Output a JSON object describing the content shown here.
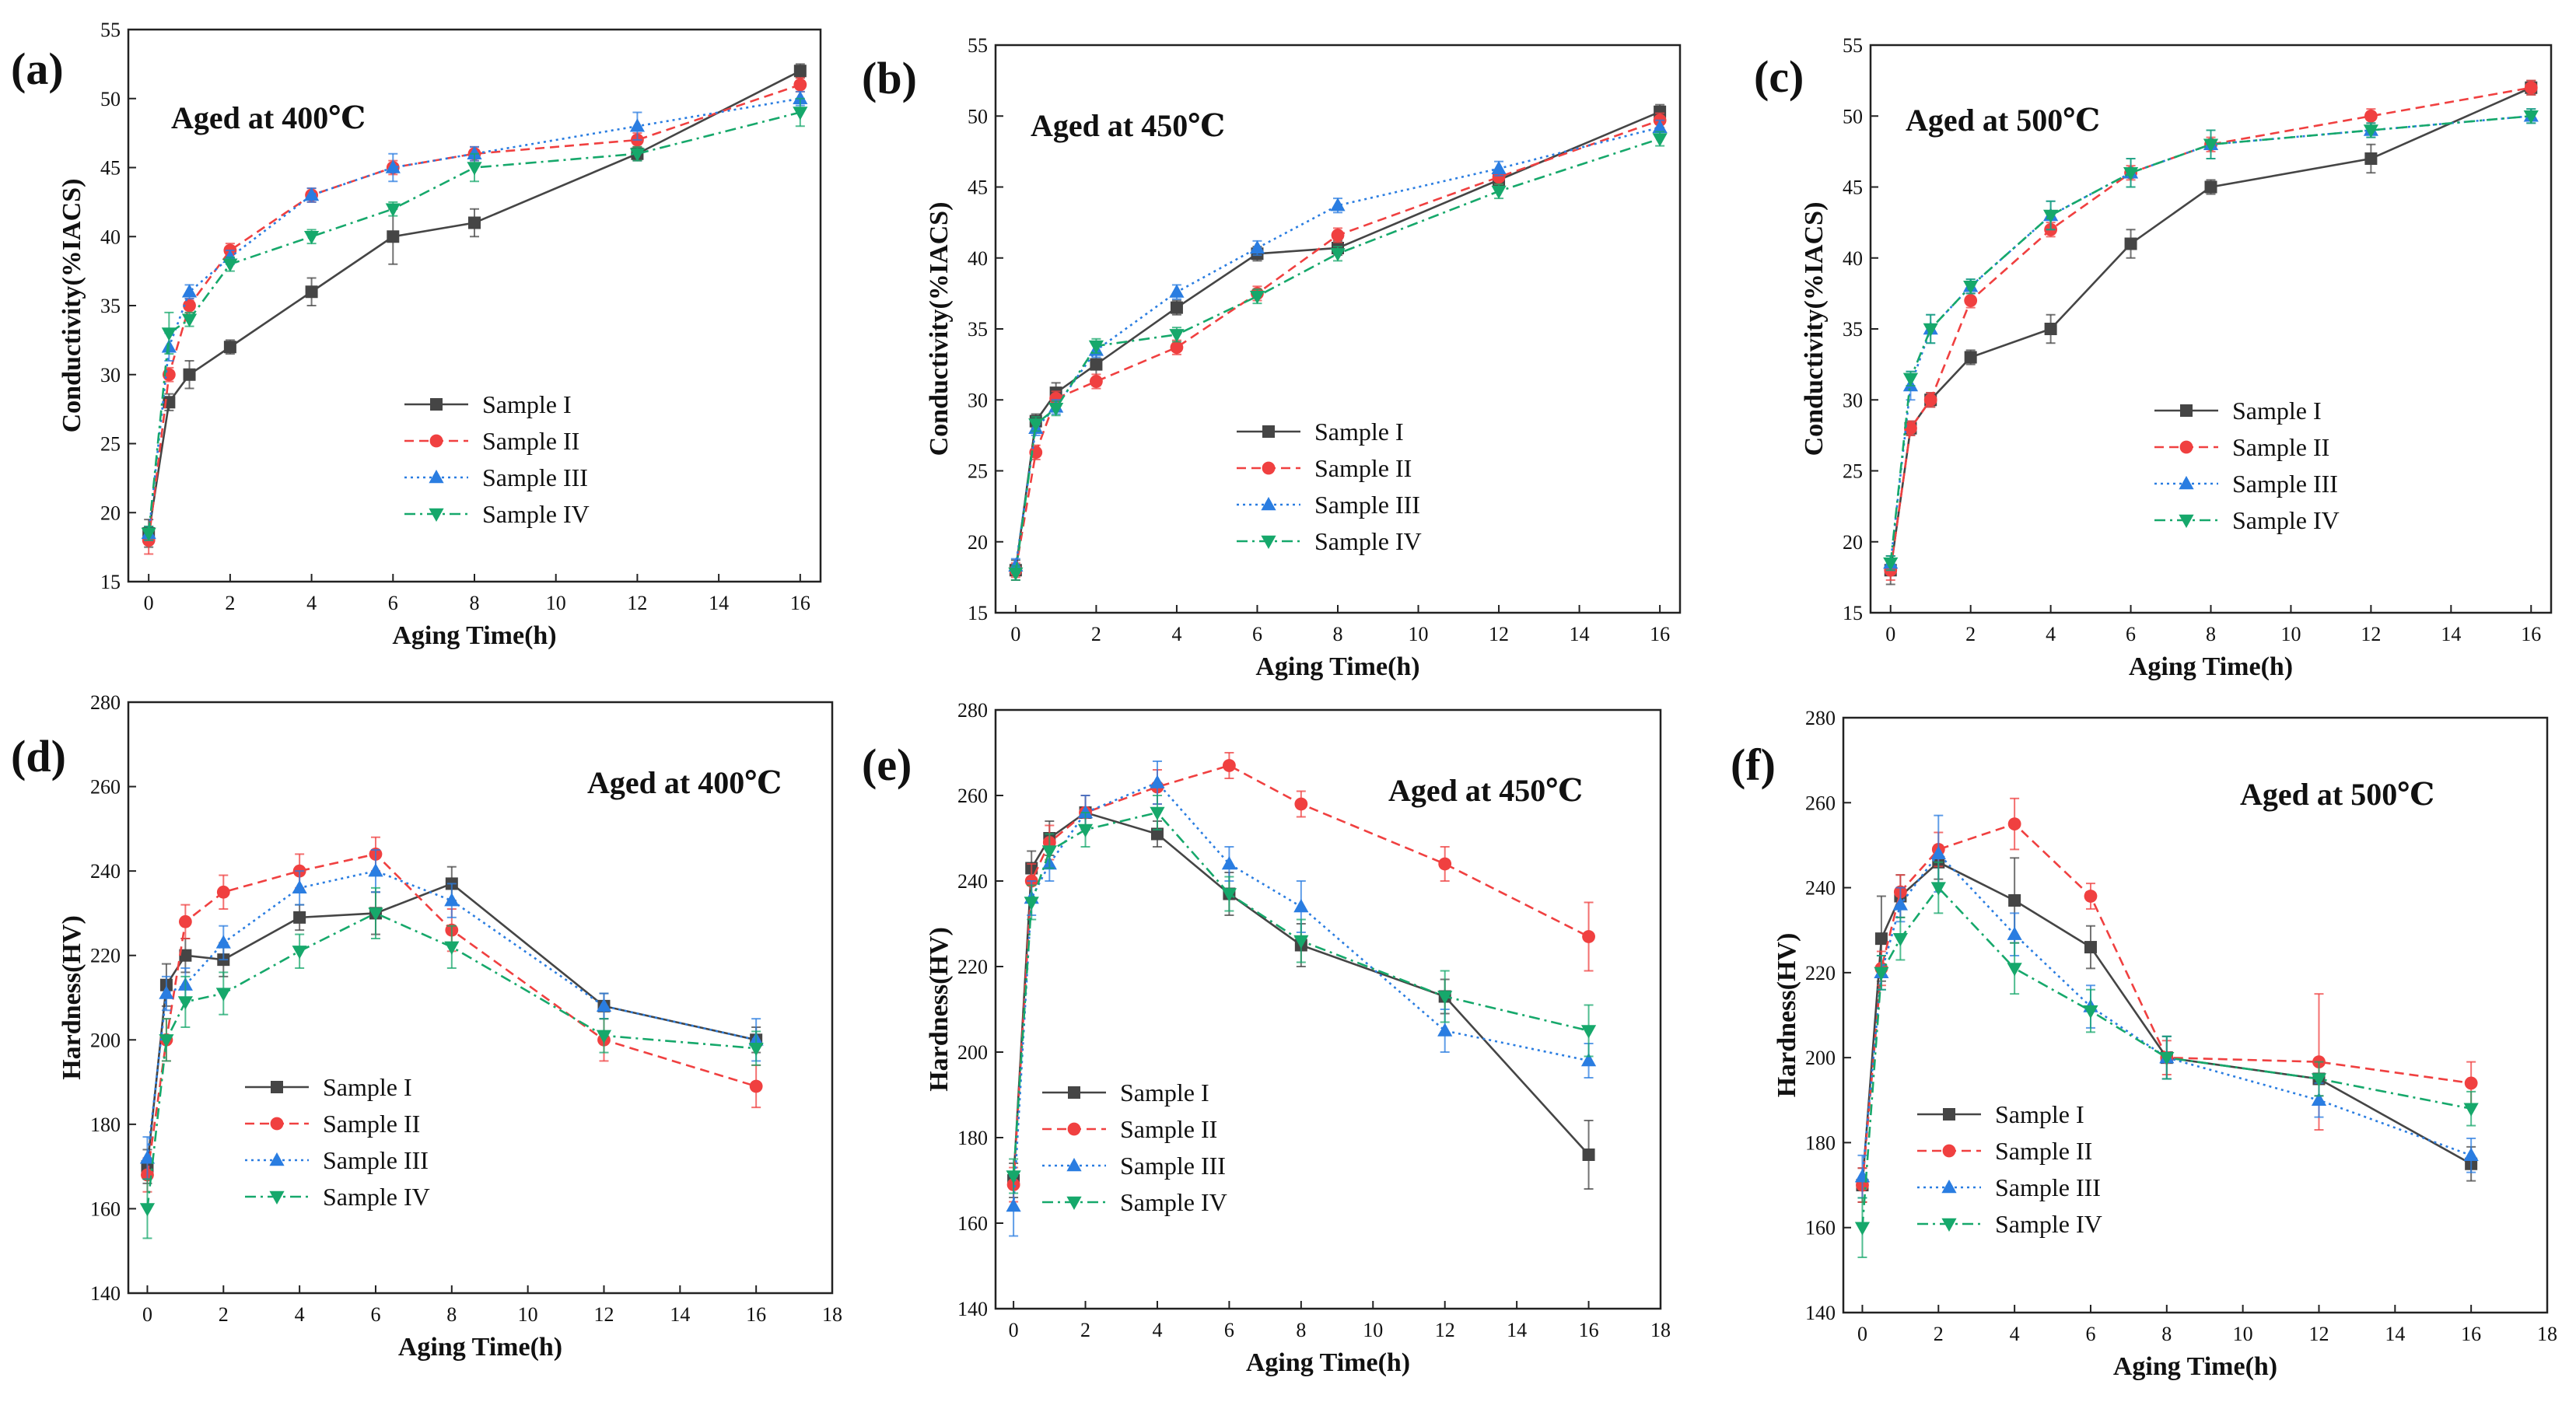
{
  "figure": {
    "series_names": [
      "Sample I",
      "Sample II",
      "Sample III",
      "Sample IV"
    ],
    "series_colors": [
      "#454545",
      "#f04040",
      "#2a7de1",
      "#16a86b"
    ],
    "series_markers": [
      "square",
      "circle",
      "triangle-up",
      "triangle-down"
    ],
    "series_dashes": [
      "solid",
      "dashed",
      "dotted",
      "dashdot"
    ]
  },
  "chart_data": [
    {
      "id": "a",
      "type": "line",
      "panel_label": "(a)",
      "annotation": "Aged at 400℃",
      "xlabel": "Aging Time(h)",
      "ylabel": "Conductivity(%IACS)",
      "xlim": [
        -0.5,
        16.5
      ],
      "ylim": [
        15,
        55
      ],
      "xticks": [
        0,
        2,
        4,
        6,
        8,
        10,
        12,
        14,
        16
      ],
      "yticks": [
        15,
        20,
        25,
        30,
        35,
        40,
        45,
        50,
        55
      ],
      "legend_position": "center-right",
      "x": [
        0,
        0.5,
        1,
        2,
        4,
        6,
        8,
        12,
        16
      ],
      "series": [
        {
          "name": "Sample I",
          "values": [
            18.5,
            28,
            30,
            32,
            36,
            40,
            41,
            46,
            52
          ],
          "errors": [
            1,
            0.6,
            1,
            0.5,
            1,
            2,
            1,
            0.5,
            0.5
          ]
        },
        {
          "name": "Sample II",
          "values": [
            18,
            30,
            35,
            39,
            43,
            45,
            46,
            47,
            51
          ],
          "errors": [
            1,
            0.5,
            0.5,
            0.5,
            0.5,
            0.5,
            0.5,
            0.5,
            0.5
          ]
        },
        {
          "name": "Sample III",
          "values": [
            18.5,
            32,
            36,
            38.5,
            43,
            45,
            46,
            48,
            50
          ],
          "errors": [
            0.5,
            1,
            0.5,
            0.5,
            0.5,
            1,
            0.5,
            1,
            0.5
          ]
        },
        {
          "name": "Sample IV",
          "values": [
            18.5,
            33,
            34,
            38,
            40,
            42,
            45,
            46,
            49
          ],
          "errors": [
            0.5,
            1.5,
            0.5,
            0.5,
            0.5,
            0.5,
            1,
            0.5,
            1
          ]
        }
      ]
    },
    {
      "id": "b",
      "type": "line",
      "panel_label": "(b)",
      "annotation": "Aged at 450℃",
      "xlabel": "Aging Time(h)",
      "ylabel": "Conductivity(%IACS)",
      "xlim": [
        -0.5,
        16.5
      ],
      "ylim": [
        15,
        55
      ],
      "xticks": [
        0,
        2,
        4,
        6,
        8,
        10,
        12,
        14,
        16
      ],
      "yticks": [
        15,
        20,
        25,
        30,
        35,
        40,
        45,
        50,
        55
      ],
      "legend_position": "center-right",
      "x": [
        0,
        0.5,
        1,
        2,
        4,
        6,
        8,
        12,
        16
      ],
      "series": [
        {
          "name": "Sample I",
          "values": [
            18,
            28.5,
            30.5,
            32.5,
            36.5,
            40.3,
            40.7,
            45.5,
            50.3
          ],
          "errors": [
            0.7,
            0.5,
            0.7,
            1.5,
            0.5,
            0.5,
            0.5,
            0.5,
            0.5
          ]
        },
        {
          "name": "Sample II",
          "values": [
            18,
            26.3,
            30.1,
            31.3,
            33.7,
            37.5,
            41.6,
            45.7,
            49.7
          ],
          "errors": [
            0.5,
            0.5,
            0.5,
            0.5,
            0.5,
            0.5,
            0.5,
            0.5,
            0.5
          ]
        },
        {
          "name": "Sample III",
          "values": [
            18.3,
            28,
            29.5,
            33.5,
            37.6,
            40.7,
            43.7,
            46.3,
            49.2
          ],
          "errors": [
            0.5,
            0.5,
            0.5,
            0.5,
            0.5,
            0.5,
            0.5,
            0.5,
            0.5
          ]
        },
        {
          "name": "Sample IV",
          "values": [
            17.8,
            28.3,
            29.4,
            33.8,
            34.6,
            37.3,
            40.3,
            44.7,
            48.4
          ],
          "errors": [
            0.5,
            0.5,
            0.5,
            0.5,
            0.5,
            0.5,
            0.5,
            0.5,
            0.5
          ]
        }
      ]
    },
    {
      "id": "c",
      "type": "line",
      "panel_label": "(c)",
      "annotation": "Aged at 500℃",
      "xlabel": "Aging Time(h)",
      "ylabel": "Conductivity(%IACS)",
      "xlim": [
        -0.5,
        16.5
      ],
      "ylim": [
        15,
        55
      ],
      "xticks": [
        0,
        2,
        4,
        6,
        8,
        10,
        12,
        14,
        16
      ],
      "yticks": [
        15,
        20,
        25,
        30,
        35,
        40,
        45,
        50,
        55
      ],
      "legend_position": "center-right",
      "x": [
        0,
        0.5,
        1,
        2,
        4,
        6,
        8,
        12,
        16
      ],
      "series": [
        {
          "name": "Sample I",
          "values": [
            18,
            28,
            30,
            33,
            35,
            41,
            45,
            47,
            52
          ],
          "errors": [
            1,
            0.5,
            0.5,
            0.5,
            1,
            1,
            0.5,
            1,
            0.5
          ]
        },
        {
          "name": "Sample II",
          "values": [
            18,
            28,
            30,
            37,
            42,
            46,
            48,
            50,
            52
          ],
          "errors": [
            0.7,
            0.5,
            0.5,
            0.5,
            0.5,
            0.5,
            0.5,
            0.5,
            0.5
          ]
        },
        {
          "name": "Sample III",
          "values": [
            18.5,
            31,
            35,
            38,
            43,
            46,
            48,
            49,
            50
          ],
          "errors": [
            0.5,
            1,
            1,
            0.5,
            1,
            1,
            1,
            0.5,
            0.5
          ]
        },
        {
          "name": "Sample IV",
          "values": [
            18.5,
            31.5,
            35,
            38,
            43,
            46,
            48,
            49,
            50
          ],
          "errors": [
            0.5,
            0.5,
            1,
            0.5,
            1,
            1,
            1,
            0.5,
            0.5
          ]
        }
      ]
    },
    {
      "id": "d",
      "type": "line",
      "panel_label": "(d)",
      "annotation": "Aged at 400℃",
      "xlabel": "Aging Time(h)",
      "ylabel": "Hardness(HV)",
      "xlim": [
        -0.5,
        18
      ],
      "ylim": [
        140,
        280
      ],
      "xticks": [
        0,
        2,
        4,
        6,
        8,
        10,
        12,
        14,
        16,
        18
      ],
      "yticks": [
        140,
        160,
        180,
        200,
        220,
        240,
        260,
        280
      ],
      "legend_position": "bottom-left",
      "x": [
        0,
        0.5,
        1,
        2,
        4,
        6,
        8,
        12,
        16
      ],
      "series": [
        {
          "name": "Sample I",
          "values": [
            170,
            213,
            220,
            219,
            229,
            230,
            237,
            208,
            200
          ],
          "errors": [
            4,
            5,
            4,
            4,
            3,
            5,
            4,
            3,
            3
          ]
        },
        {
          "name": "Sample II",
          "values": [
            168,
            200,
            228,
            235,
            240,
            244,
            226,
            200,
            189
          ],
          "errors": [
            4,
            5,
            4,
            4,
            4,
            4,
            5,
            5,
            5
          ]
        },
        {
          "name": "Sample III",
          "values": [
            172,
            211,
            213,
            223,
            236,
            240,
            233,
            208,
            200
          ],
          "errors": [
            5,
            4,
            4,
            4,
            4,
            5,
            4,
            3,
            5
          ]
        },
        {
          "name": "Sample IV",
          "values": [
            160,
            200,
            209,
            211,
            221,
            230,
            222,
            201,
            198
          ],
          "errors": [
            7,
            5,
            6,
            5,
            4,
            6,
            5,
            4,
            4
          ]
        }
      ]
    },
    {
      "id": "e",
      "type": "line",
      "panel_label": "(e)",
      "annotation": "Aged at 450℃",
      "xlabel": "Aging Time(h)",
      "ylabel": "Hardness(HV)",
      "xlim": [
        -0.5,
        18
      ],
      "ylim": [
        140,
        280
      ],
      "xticks": [
        0,
        2,
        4,
        6,
        8,
        10,
        12,
        14,
        16,
        18
      ],
      "yticks": [
        140,
        160,
        180,
        200,
        220,
        240,
        260,
        280
      ],
      "legend_position": "bottom-left",
      "x": [
        0,
        0.5,
        1,
        2,
        4,
        6,
        8,
        12,
        16
      ],
      "series": [
        {
          "name": "Sample I",
          "values": [
            170,
            243,
            250,
            256,
            251,
            237,
            225,
            213,
            176
          ],
          "errors": [
            4,
            4,
            4,
            4,
            3,
            5,
            5,
            4,
            8
          ]
        },
        {
          "name": "Sample II",
          "values": [
            169,
            240,
            249,
            256,
            262,
            267,
            258,
            244,
            227
          ],
          "errors": [
            4,
            4,
            4,
            4,
            4,
            3,
            3,
            4,
            8
          ]
        },
        {
          "name": "Sample III",
          "values": [
            164,
            236,
            244,
            256,
            263,
            244,
            234,
            205,
            198
          ],
          "errors": [
            7,
            4,
            4,
            4,
            5,
            4,
            6,
            5,
            4
          ]
        },
        {
          "name": "Sample IV",
          "values": [
            171,
            235,
            247,
            252,
            256,
            237,
            226,
            213,
            205
          ],
          "errors": [
            4,
            4,
            4,
            4,
            4,
            4,
            5,
            6,
            6
          ]
        }
      ]
    },
    {
      "id": "f",
      "type": "line",
      "panel_label": "(f)",
      "annotation": "Aged at 500℃",
      "xlabel": "Aging Time(h)",
      "ylabel": "Hardness(HV)",
      "xlim": [
        -0.5,
        18
      ],
      "ylim": [
        140,
        280
      ],
      "xticks": [
        0,
        2,
        4,
        6,
        8,
        10,
        12,
        14,
        16,
        18
      ],
      "yticks": [
        140,
        160,
        180,
        200,
        220,
        240,
        260,
        280
      ],
      "legend_position": "bottom-left",
      "x": [
        0,
        0.5,
        1,
        2,
        4,
        6,
        8,
        12,
        16
      ],
      "series": [
        {
          "name": "Sample I",
          "values": [
            170,
            228,
            238,
            246,
            237,
            226,
            200,
            195,
            175
          ],
          "errors": [
            4,
            10,
            5,
            4,
            10,
            5,
            5,
            4,
            4
          ]
        },
        {
          "name": "Sample II",
          "values": [
            170,
            221,
            239,
            249,
            255,
            238,
            200,
            199,
            194
          ],
          "errors": [
            4,
            4,
            4,
            4,
            6,
            3,
            4,
            16,
            5
          ]
        },
        {
          "name": "Sample III",
          "values": [
            172,
            220,
            236,
            248,
            229,
            212,
            200,
            190,
            177
          ],
          "errors": [
            5,
            4,
            4,
            9,
            5,
            5,
            5,
            4,
            4
          ]
        },
        {
          "name": "Sample IV",
          "values": [
            160,
            220,
            228,
            240,
            221,
            211,
            200,
            195,
            188
          ],
          "errors": [
            7,
            4,
            5,
            6,
            6,
            5,
            5,
            4,
            4
          ]
        }
      ]
    }
  ]
}
